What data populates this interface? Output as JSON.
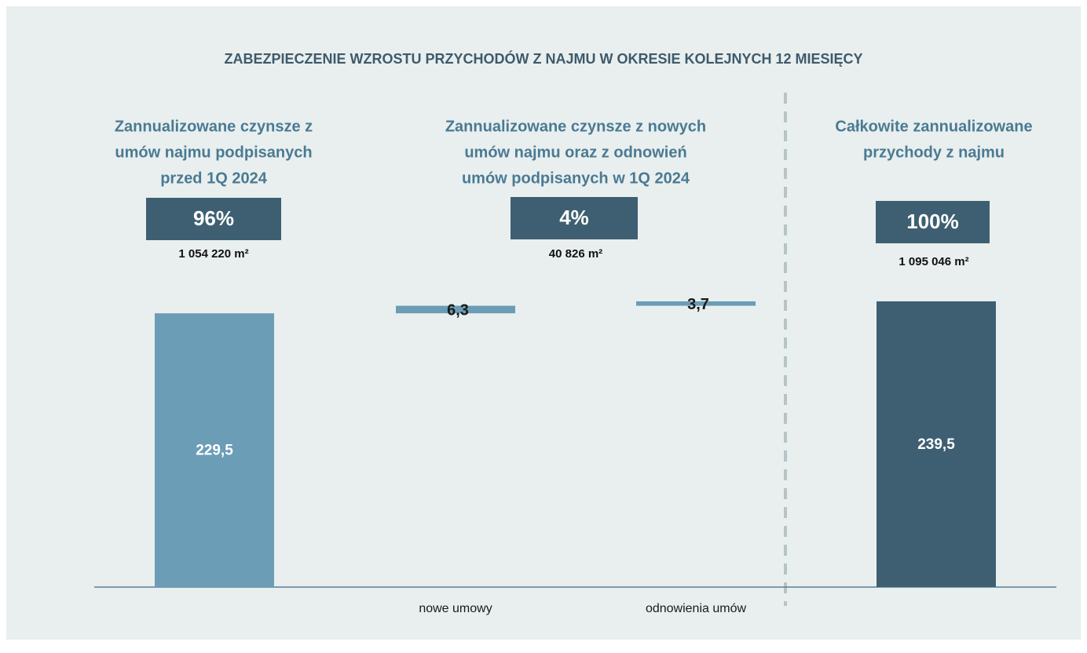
{
  "chart_data": {
    "type": "waterfall",
    "title": "ZABEZPIECZENIE WZROSTU PRZYCHODÓW Z NAJMU W OKRESIE KOLEJNYCH 12 MIESIĘCY",
    "categories": [
      null,
      "nowe umowy",
      "odnowienia umów",
      null
    ],
    "values": [
      229.5,
      6.3,
      3.7,
      239.5
    ],
    "value_labels": [
      "229,5",
      "6,3",
      "3,7",
      "239,5"
    ],
    "measure": [
      "absolute",
      "relative",
      "relative",
      "total"
    ],
    "colors": [
      "#6b9db6",
      "#6b9db6",
      "#6b9db6",
      "#3e5f72"
    ],
    "groups": [
      {
        "heading": [
          "Zannualizowane czynsze z",
          "umów najmu podpisanych",
          "przed 1Q 2024"
        ],
        "share": "96%",
        "area": "1 054 220 m²"
      },
      {
        "heading": [
          "Zannualizowane czynsze z nowych",
          "umów najmu oraz z odnowień",
          "umów podpisanych w 1Q 2024"
        ],
        "share": "4%",
        "area": "40 826 m²"
      },
      {
        "heading": [
          "Całkowite zannualizowane",
          "przychody z najmu"
        ],
        "share": "100%",
        "area": "1 095 046 m²"
      }
    ]
  }
}
